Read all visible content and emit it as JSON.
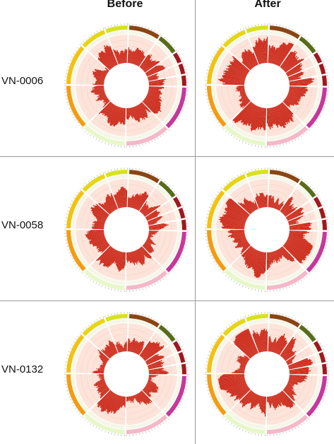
{
  "columns": [
    {
      "label": "Before"
    },
    {
      "label": "After"
    }
  ],
  "rows": [
    {
      "label": "VN-0006"
    },
    {
      "label": "VN-0058"
    },
    {
      "label": "VN-0132"
    }
  ],
  "colors": {
    "data_fill": "#cc2a1a",
    "track_bg": "#fde4da",
    "chrom": [
      "#8b4513",
      "#5a6b1a",
      "#a0181f",
      "#a0181f",
      "#a0181f",
      "#c6389b",
      "#f4b8c8",
      "#e8f7c8",
      "#f39c12",
      "#f2c20f",
      "#e8d514",
      "#d8e21e"
    ]
  }
}
